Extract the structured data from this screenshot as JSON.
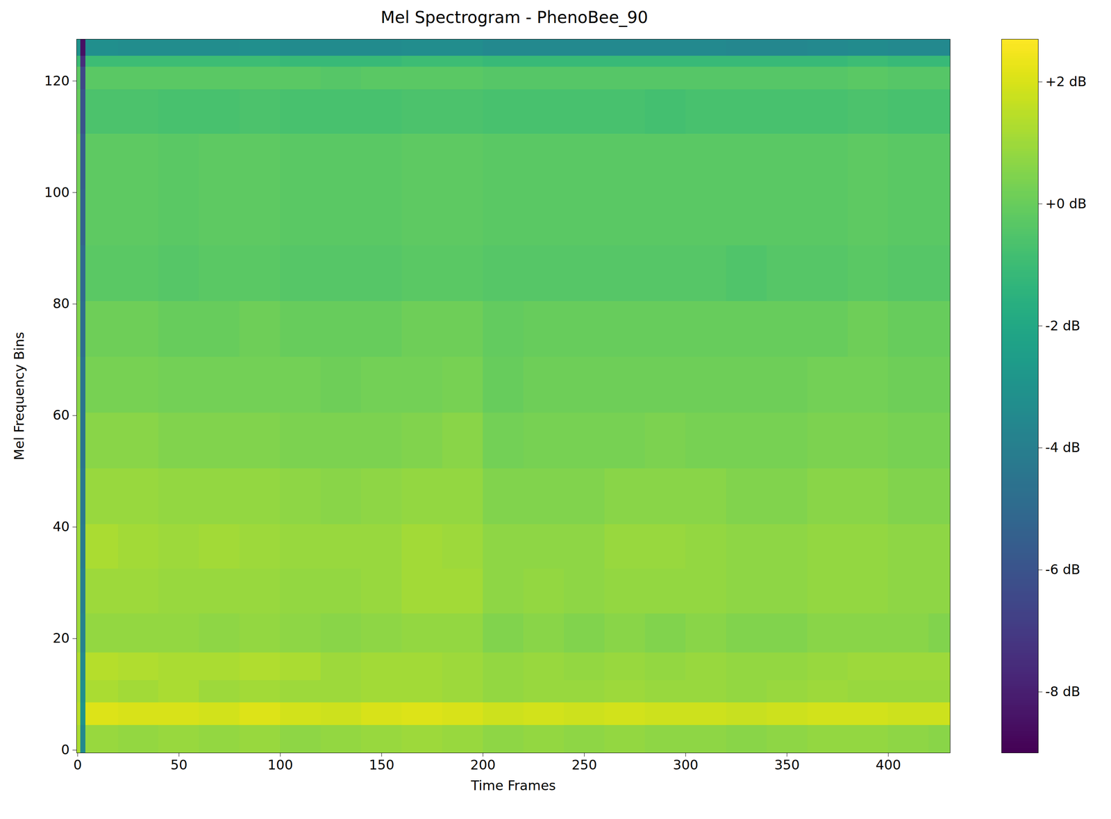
{
  "chart_data": {
    "type": "heatmap",
    "title": "Mel Spectrogram - PhenoBee_90",
    "x_label": "Time Frames",
    "y_label": "Mel Frequency Bins",
    "xlim": [
      -0.5,
      430.5
    ],
    "ylim": [
      -0.5,
      127.5
    ],
    "xticks": [
      0,
      50,
      100,
      150,
      200,
      250,
      300,
      350,
      400
    ],
    "yticks": [
      0,
      20,
      40,
      60,
      80,
      100,
      120
    ],
    "color": "viridis",
    "x_edges": [
      -0.5,
      1.5,
      4,
      20,
      40,
      60,
      80,
      100,
      120,
      140,
      160,
      180,
      200,
      220,
      240,
      260,
      280,
      300,
      320,
      340,
      360,
      380,
      400,
      420,
      430.5
    ],
    "y_edges": [
      -0.5,
      4.5,
      8.5,
      12.5,
      17.5,
      24.5,
      32.5,
      40.5,
      50.5,
      60.5,
      70.5,
      80.5,
      90.5,
      100.5,
      110.5,
      118.5,
      122.5,
      124.5,
      127.5
    ],
    "cells": [
      [
        1.2,
        -3.5,
        0.9,
        0.8,
        0.9,
        0.8,
        0.9,
        0.7,
        0.8,
        0.9,
        1.0,
        0.9,
        0.7,
        0.8,
        0.7,
        0.8,
        0.7,
        0.7,
        0.6,
        0.7,
        0.8,
        0.8,
        0.7,
        0.6
      ],
      [
        1.5,
        -3.0,
        2.1,
        2.0,
        2.0,
        1.9,
        2.1,
        1.9,
        1.8,
        2.0,
        2.1,
        2.0,
        1.8,
        1.9,
        1.8,
        1.9,
        1.8,
        1.8,
        1.7,
        1.8,
        1.9,
        1.9,
        1.8,
        1.8
      ],
      [
        1.3,
        -3.2,
        1.2,
        1.1,
        1.2,
        1.0,
        1.1,
        1.0,
        1.0,
        1.1,
        1.1,
        1.0,
        0.8,
        0.9,
        0.9,
        1.0,
        0.9,
        0.9,
        0.8,
        0.9,
        1.0,
        0.9,
        0.9,
        0.9
      ],
      [
        1.3,
        -3.5,
        1.4,
        1.3,
        1.2,
        1.2,
        1.3,
        1.2,
        1.0,
        1.1,
        1.1,
        1.0,
        0.8,
        0.9,
        0.8,
        0.9,
        0.8,
        0.9,
        0.8,
        0.8,
        0.9,
        1.0,
        1.0,
        1.0
      ],
      [
        1.0,
        -3.8,
        0.8,
        0.8,
        0.8,
        0.7,
        0.8,
        0.7,
        0.6,
        0.7,
        0.8,
        0.8,
        0.5,
        0.6,
        0.5,
        0.6,
        0.5,
        0.6,
        0.5,
        0.5,
        0.6,
        0.6,
        0.6,
        0.5
      ],
      [
        1.0,
        -4.0,
        1.0,
        1.0,
        0.9,
        0.9,
        0.9,
        0.8,
        0.8,
        0.9,
        1.1,
        1.1,
        0.7,
        0.8,
        0.7,
        0.8,
        0.8,
        0.8,
        0.7,
        0.7,
        0.8,
        0.8,
        0.7,
        0.7
      ],
      [
        1.0,
        -4.2,
        1.2,
        1.1,
        1.0,
        1.1,
        1.0,
        0.9,
        0.9,
        0.9,
        1.1,
        1.0,
        0.7,
        0.7,
        0.7,
        0.9,
        0.9,
        0.8,
        0.7,
        0.7,
        0.8,
        0.8,
        0.7,
        0.7
      ],
      [
        0.9,
        -4.3,
        0.9,
        0.9,
        0.8,
        0.8,
        0.8,
        0.7,
        0.6,
        0.7,
        0.8,
        0.8,
        0.5,
        0.5,
        0.5,
        0.6,
        0.6,
        0.6,
        0.5,
        0.5,
        0.6,
        0.6,
        0.5,
        0.5
      ],
      [
        0.8,
        -4.5,
        0.6,
        0.6,
        0.5,
        0.5,
        0.5,
        0.4,
        0.4,
        0.4,
        0.5,
        0.6,
        0.2,
        0.3,
        0.3,
        0.3,
        0.4,
        0.3,
        0.3,
        0.3,
        0.4,
        0.4,
        0.3,
        0.3
      ],
      [
        0.6,
        -4.5,
        0.3,
        0.3,
        0.2,
        0.2,
        0.2,
        0.2,
        0.1,
        0.2,
        0.2,
        0.3,
        0.0,
        0.1,
        0.1,
        0.1,
        0.1,
        0.1,
        0.1,
        0.1,
        0.2,
        0.2,
        0.1,
        0.1
      ],
      [
        0.5,
        -4.8,
        0.1,
        0.1,
        0.0,
        0.0,
        0.1,
        0.0,
        0.0,
        0.0,
        0.1,
        0.1,
        -0.1,
        0.0,
        0.0,
        0.0,
        0.0,
        0.0,
        0.0,
        0.0,
        0.0,
        0.1,
        0.0,
        0.0
      ],
      [
        0.3,
        -5.0,
        -0.3,
        -0.3,
        -0.4,
        -0.3,
        -0.3,
        -0.4,
        -0.4,
        -0.4,
        -0.3,
        -0.3,
        -0.4,
        -0.4,
        -0.4,
        -0.4,
        -0.4,
        -0.4,
        -0.5,
        -0.4,
        -0.4,
        -0.3,
        -0.4,
        -0.4
      ],
      [
        0.3,
        -5.3,
        -0.2,
        -0.2,
        -0.3,
        -0.2,
        -0.2,
        -0.3,
        -0.3,
        -0.3,
        -0.2,
        -0.2,
        -0.3,
        -0.3,
        -0.3,
        -0.3,
        -0.3,
        -0.3,
        -0.3,
        -0.3,
        -0.3,
        -0.2,
        -0.3,
        -0.3
      ],
      [
        0.2,
        -5.6,
        -0.2,
        -0.2,
        -0.3,
        -0.2,
        -0.2,
        -0.3,
        -0.3,
        -0.3,
        -0.2,
        -0.2,
        -0.3,
        -0.3,
        -0.3,
        -0.3,
        -0.3,
        -0.3,
        -0.3,
        -0.3,
        -0.3,
        -0.2,
        -0.3,
        -0.3
      ],
      [
        0.0,
        -6.0,
        -0.6,
        -0.6,
        -0.7,
        -0.7,
        -0.6,
        -0.7,
        -0.7,
        -0.7,
        -0.6,
        -0.6,
        -0.7,
        -0.7,
        -0.7,
        -0.7,
        -0.8,
        -0.7,
        -0.7,
        -0.7,
        -0.7,
        -0.6,
        -0.7,
        -0.7
      ],
      [
        -0.2,
        -6.5,
        -0.3,
        -0.3,
        -0.3,
        -0.3,
        -0.3,
        -0.3,
        -0.4,
        -0.3,
        -0.3,
        -0.3,
        -0.4,
        -0.4,
        -0.4,
        -0.4,
        -0.4,
        -0.4,
        -0.4,
        -0.4,
        -0.4,
        -0.3,
        -0.4,
        -0.4
      ],
      [
        -1.0,
        -7.5,
        -1.0,
        -1.0,
        -1.0,
        -1.0,
        -1.0,
        -1.1,
        -1.1,
        -1.1,
        -1.0,
        -1.0,
        -1.1,
        -1.1,
        -1.1,
        -1.1,
        -1.1,
        -1.1,
        -1.1,
        -1.1,
        -1.1,
        -1.0,
        -1.1,
        -1.1
      ],
      [
        -3.0,
        -8.5,
        -3.2,
        -3.3,
        -3.3,
        -3.3,
        -3.2,
        -3.4,
        -3.4,
        -3.4,
        -3.3,
        -3.3,
        -3.5,
        -3.5,
        -3.5,
        -3.5,
        -3.5,
        -3.5,
        -3.6,
        -3.6,
        -3.5,
        -3.4,
        -3.5,
        -3.5
      ]
    ],
    "colorbar": {
      "range": [
        -9,
        2.7
      ],
      "ticks": [
        {
          "value": -8,
          "label": "-8 dB"
        },
        {
          "value": -6,
          "label": "-6 dB"
        },
        {
          "value": -4,
          "label": "-4 dB"
        },
        {
          "value": -2,
          "label": "-2 dB"
        },
        {
          "value": 0,
          "label": "+0 dB"
        },
        {
          "value": 2,
          "label": "+2 dB"
        }
      ]
    }
  }
}
